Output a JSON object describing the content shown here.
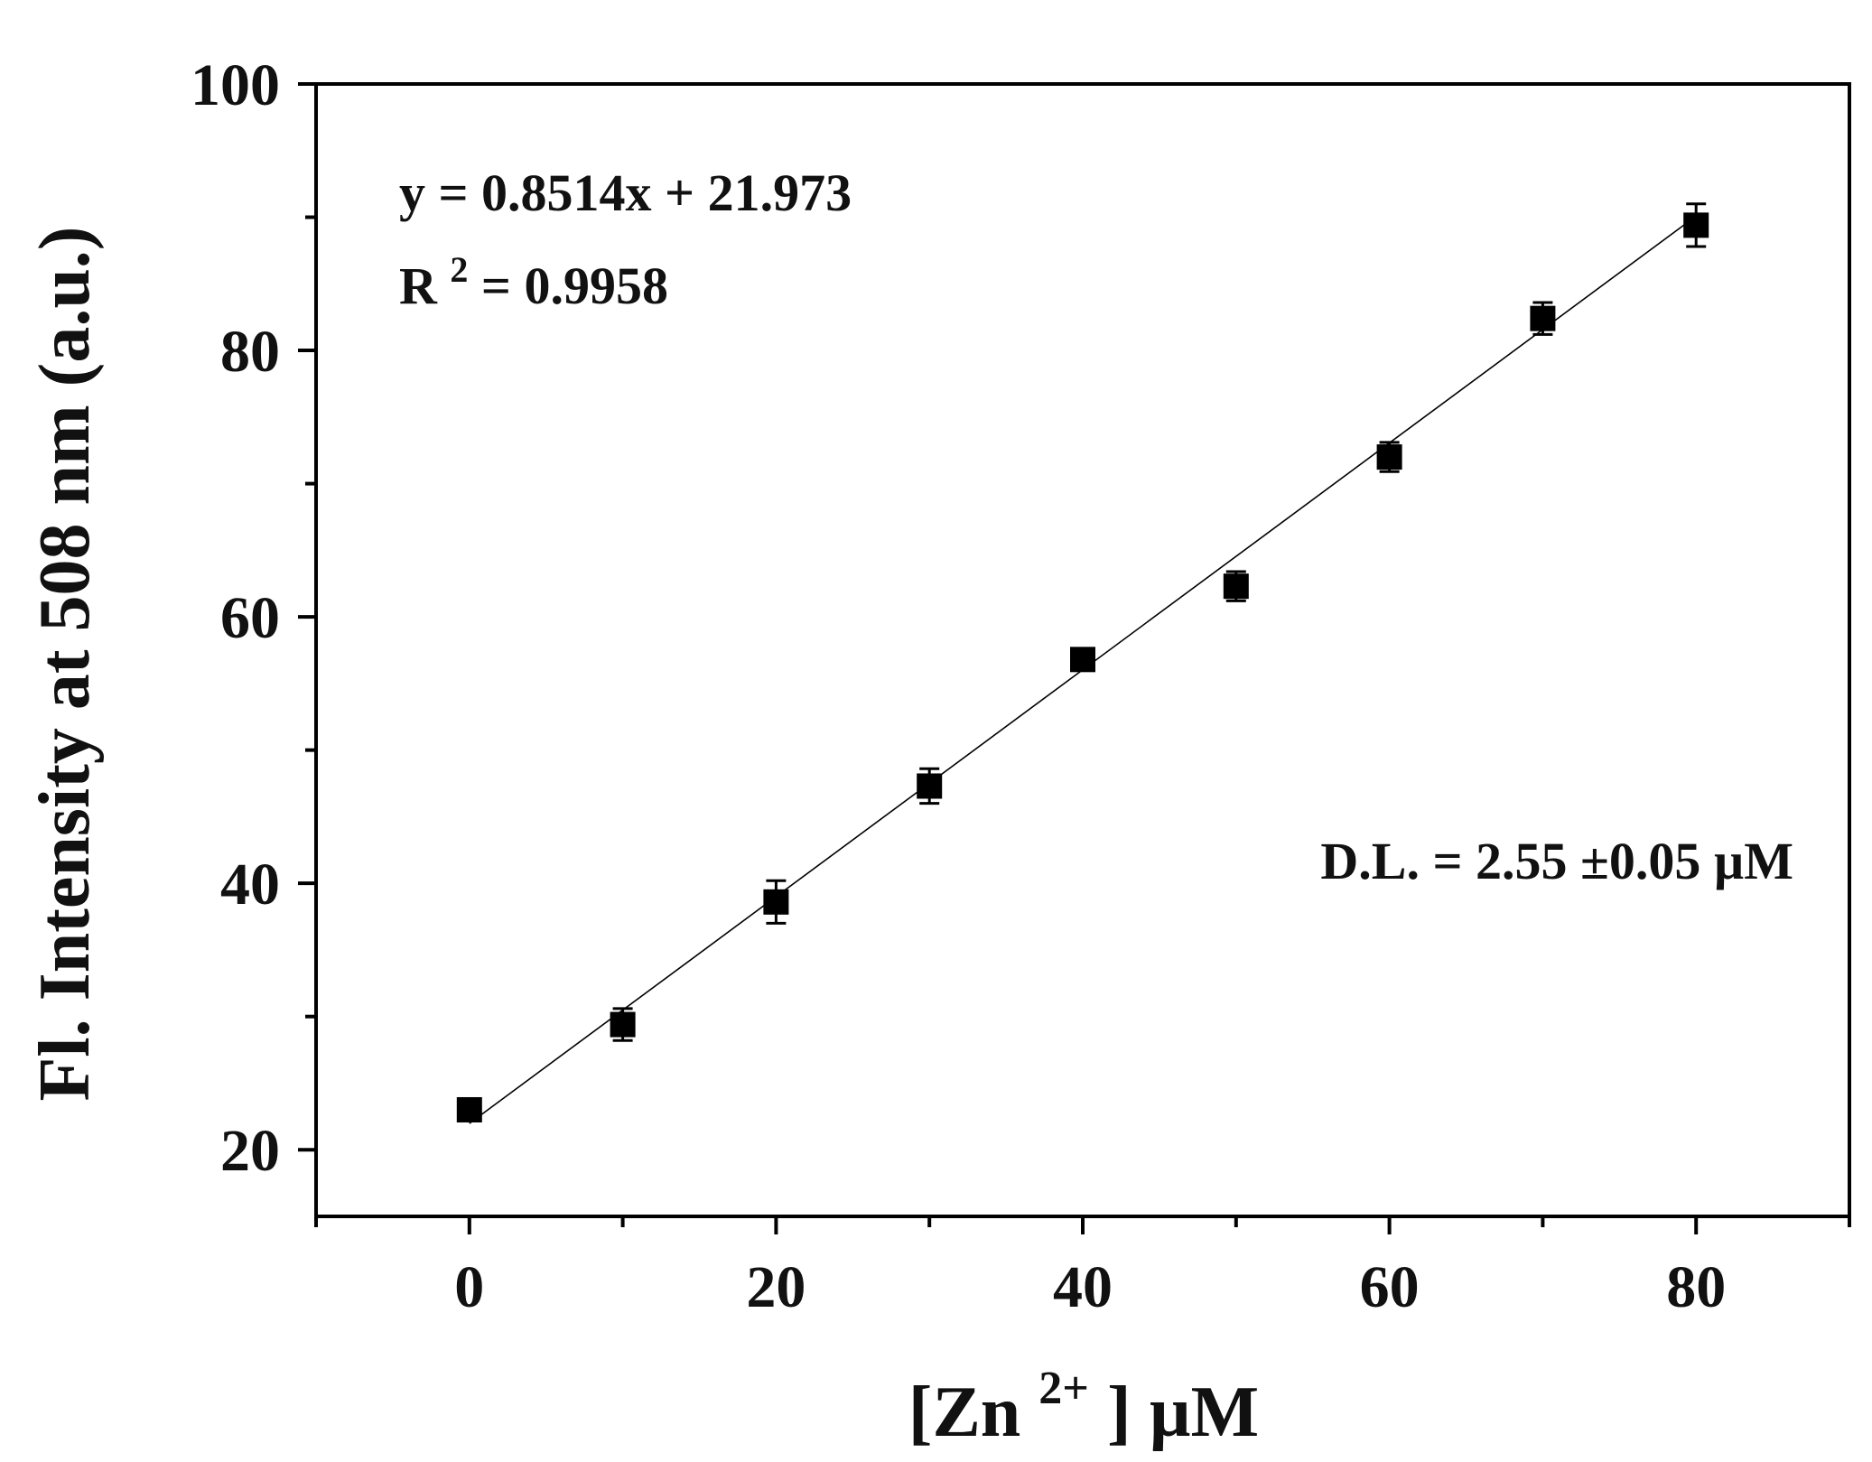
{
  "chart_data": {
    "type": "scatter",
    "xlabel": {
      "main": "[Zn",
      "sup": "2+",
      "tail": "] µM"
    },
    "ylabel": "Fl. Intensity at 508 nm (a.u.)",
    "xlim": [
      -10,
      90
    ],
    "ylim": [
      15,
      100
    ],
    "x_ticks": [
      0,
      20,
      40,
      60,
      80
    ],
    "x_tick_labels": [
      "0",
      "20",
      "40",
      "60",
      "80"
    ],
    "x_minor_ticks": [
      -10,
      10,
      30,
      50,
      70,
      90
    ],
    "y_ticks": [
      20,
      40,
      60,
      80,
      100
    ],
    "y_tick_labels": [
      "20",
      "40",
      "60",
      "80",
      "100"
    ],
    "y_minor_ticks": [
      30,
      50,
      70,
      90
    ],
    "series": [
      {
        "marker": "square",
        "color": "#000000",
        "x": [
          0,
          10,
          20,
          30,
          40,
          50,
          60,
          70,
          80
        ],
        "y": [
          23.0,
          29.4,
          38.6,
          47.3,
          56.8,
          62.3,
          72.0,
          82.4,
          89.4
        ],
        "error": [
          0.6,
          1.2,
          1.6,
          1.3,
          0.6,
          1.1,
          1.1,
          1.2,
          1.6
        ]
      }
    ],
    "fit": {
      "slope": 0.8514,
      "intercept": 21.973,
      "x_range": [
        0,
        80
      ],
      "color": "#000000"
    },
    "annotations": {
      "equation": "y = 0.8514x + 21.973",
      "r2_prefix": "R",
      "r2_sup": "2",
      "r2_value": " = 0.9958",
      "detection_limit": "D.L. = 2.55 ±0.05 µM"
    },
    "grid": false,
    "legend": "none"
  }
}
